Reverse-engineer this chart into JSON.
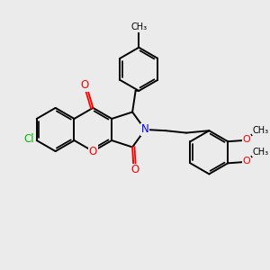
{
  "background_color": "#ebebeb",
  "bond_color": "#000000",
  "atom_colors": {
    "O": "#ff0000",
    "N": "#0000ff",
    "Cl": "#00bb00"
  },
  "line_width": 1.4,
  "figsize": [
    3.0,
    3.0
  ],
  "dpi": 100,
  "xlim": [
    -5.5,
    6.5
  ],
  "ylim": [
    -4.5,
    5.0
  ]
}
